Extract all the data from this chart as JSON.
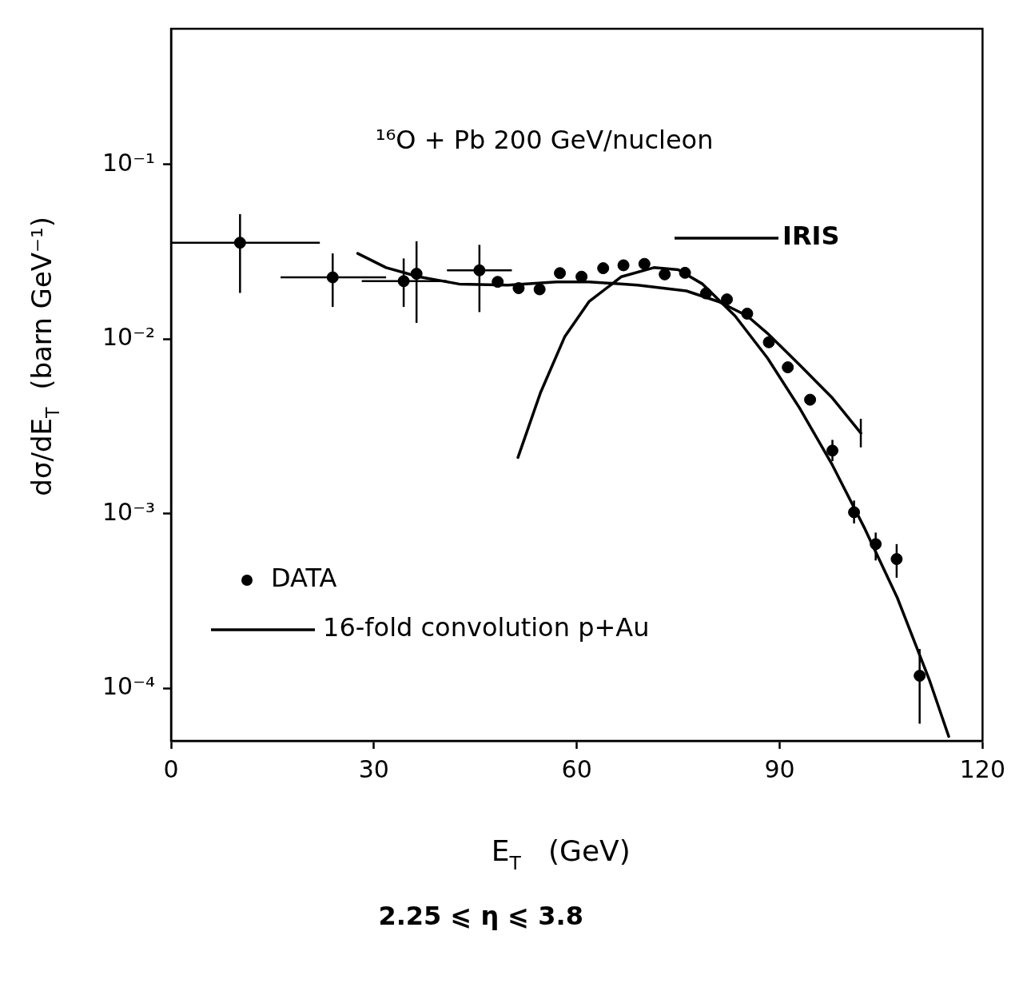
{
  "chart_data": {
    "type": "scatter",
    "title": "¹⁶O + Pb 200 GeV/nucleon",
    "xlabel": "E$_{T}$   (GeV)",
    "ylabel": "dσ/dE$_{T}$  (barn GeV⁻¹)",
    "annotations": [
      "2.25 ⩽ η ⩽ 3.8"
    ],
    "xlim": [
      0,
      120
    ],
    "xticks": [
      0,
      30,
      60,
      90,
      120
    ],
    "ylim": [
      5e-05,
      0.6
    ],
    "yticks": [
      {
        "value": 0.0001,
        "label": "10⁻⁴"
      },
      {
        "value": 0.001,
        "label": "10⁻³"
      },
      {
        "value": 0.01,
        "label": "10⁻²"
      },
      {
        "value": 0.1,
        "label": "10⁻¹"
      }
    ],
    "log": "y",
    "grid": false,
    "legend": "left",
    "series": [
      {
        "name": "DATA",
        "color": "#000000",
        "marker": "circle",
        "x": [
          10.2,
          23.9,
          34.4,
          36.3,
          45.6,
          48.3,
          51.4,
          54.5,
          57.5,
          60.7,
          63.9,
          66.9,
          70.0,
          73.0,
          76.0,
          79.1,
          82.2,
          85.2,
          88.4,
          91.2,
          94.5,
          97.8,
          101.0,
          104.2,
          107.3,
          110.7
        ],
        "values": [
          0.0357,
          0.0226,
          0.0215,
          0.0237,
          0.0248,
          0.0213,
          0.0196,
          0.0193,
          0.0239,
          0.0228,
          0.0255,
          0.0265,
          0.027,
          0.0235,
          0.024,
          0.0183,
          0.0169,
          0.014,
          0.0096,
          0.0069,
          0.0045,
          0.0023,
          0.00102,
          0.00067,
          0.00055,
          0.000118
        ],
        "errors": [
          [
            0.0184,
            0.052
          ],
          [
            0.0153,
            0.031
          ],
          [
            0.0153,
            0.029
          ],
          [
            0.0124,
            0.0364
          ],
          [
            0.0143,
            0.0347
          ],
          null,
          null,
          null,
          null,
          null,
          null,
          null,
          null,
          null,
          null,
          null,
          null,
          null,
          null,
          null,
          null,
          [
            0.002,
            0.00265
          ],
          [
            0.00088,
            0.00119
          ],
          [
            0.00054,
            0.00078
          ],
          [
            0.00043,
            0.00067
          ],
          [
            6.27e-05,
            0.000168
          ]
        ],
        "xerrors": [
          [
            0,
            22
          ],
          [
            16.2,
            31.8
          ],
          [
            28.2,
            40.8
          ],
          null,
          [
            40.8,
            50.4
          ],
          null,
          null,
          null,
          null,
          null,
          null,
          null,
          null,
          null,
          null,
          null,
          null,
          null,
          null,
          null,
          null,
          null,
          null,
          null,
          null,
          null
        ]
      },
      {
        "name": "IRIS",
        "type": "line",
        "color": "#000000",
        "marker": "none",
        "line_style": "solid",
        "x": [
          27.6,
          31.8,
          36.6,
          42.6,
          49.8,
          57,
          61.8,
          69,
          76.2,
          81,
          85.2,
          88.2,
          93,
          97.8,
          102
        ],
        "values": [
          0.031,
          0.0257,
          0.0228,
          0.0207,
          0.0204,
          0.0213,
          0.0213,
          0.0204,
          0.0189,
          0.0164,
          0.0136,
          0.0108,
          0.0071,
          0.0046,
          0.0029
        ],
        "errors": [
          null,
          null,
          null,
          null,
          null,
          null,
          null,
          null,
          null,
          null,
          null,
          null,
          null,
          null,
          [
            0.0024,
            0.0035
          ]
        ]
      },
      {
        "name": "16-fold convolution p+Au",
        "type": "line",
        "color": "#000000",
        "marker": "none",
        "line_style": "solid",
        "x": [
          51.3,
          54.6,
          58.2,
          61.8,
          66.6,
          71.4,
          75,
          78.6,
          83.4,
          88.2,
          93,
          97.8,
          102.6,
          107.4,
          112.2,
          115
        ],
        "values": [
          0.0021,
          0.0049,
          0.0103,
          0.0164,
          0.0228,
          0.0257,
          0.025,
          0.0207,
          0.0136,
          0.0078,
          0.004,
          0.0019,
          0.00082,
          0.00033,
          0.00011,
          5.3e-05
        ]
      }
    ]
  }
}
